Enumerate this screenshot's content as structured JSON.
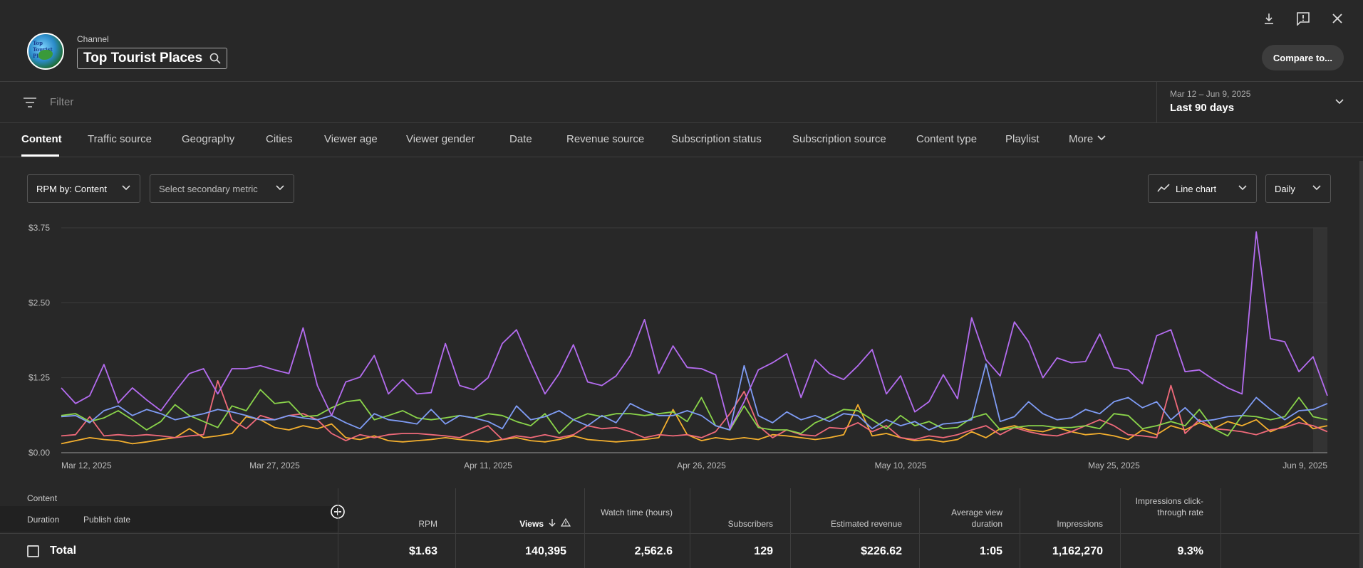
{
  "header": {
    "channel_label": "Channel",
    "channel_name": "Top Tourist Places",
    "avatar_text": "Top Tourist Places",
    "compare_label": "Compare to..."
  },
  "filter": {
    "placeholder": "Filter",
    "date_range": "Mar 12 – Jun 9, 2025",
    "date_value": "Last 90 days"
  },
  "tabs": [
    {
      "label": "Content",
      "active": true
    },
    {
      "label": "Traffic source"
    },
    {
      "label": "Geography"
    },
    {
      "label": "Cities"
    },
    {
      "label": "Viewer age"
    },
    {
      "label": "Viewer gender"
    },
    {
      "label": "Date"
    },
    {
      "label": "Revenue source"
    },
    {
      "label": "Subscription status"
    },
    {
      "label": "Subscription source"
    },
    {
      "label": "Content type"
    },
    {
      "label": "Playlist"
    },
    {
      "label": "More"
    }
  ],
  "controls": {
    "primary_metric": "RPM by: Content",
    "secondary_metric": "Select secondary metric",
    "chart_type": "Line chart",
    "interval": "Daily"
  },
  "chart_data": {
    "type": "line",
    "ylim": [
      0,
      3.75
    ],
    "y_ticks": [
      "$0.00",
      "$1.25",
      "$2.50",
      "$3.75"
    ],
    "x_ticks": [
      "Mar 12, 2025",
      "Mar 27, 2025",
      "Apr 11, 2025",
      "Apr 26, 2025",
      "May 10, 2025",
      "May 25, 2025",
      "Jun 9, 2025"
    ],
    "x_tick_days": [
      0,
      15,
      30,
      45,
      59,
      74,
      89
    ],
    "series": [
      {
        "color": "#b46cf0",
        "values": [
          1.08,
          0.82,
          0.95,
          1.47,
          0.83,
          1.08,
          0.88,
          0.7,
          1.02,
          1.32,
          1.4,
          0.98,
          1.4,
          1.4,
          1.45,
          1.38,
          1.32,
          2.08,
          1.12,
          0.62,
          1.18,
          1.26,
          1.62,
          0.98,
          1.22,
          0.98,
          1.0,
          1.82,
          1.12,
          1.05,
          1.25,
          1.82,
          2.05,
          1.5,
          0.98,
          1.32,
          1.8,
          1.18,
          1.12,
          1.28,
          1.62,
          2.22,
          1.32,
          1.78,
          1.42,
          1.4,
          1.3,
          0.4,
          0.85,
          1.38,
          1.5,
          1.65,
          0.92,
          1.55,
          1.32,
          1.22,
          1.45,
          1.72,
          0.98,
          1.28,
          0.68,
          0.85,
          1.3,
          0.9,
          2.25,
          1.55,
          1.28,
          2.18,
          1.85,
          1.25,
          1.58,
          1.5,
          1.52,
          1.98,
          1.42,
          1.38,
          1.15,
          1.95,
          2.05,
          1.35,
          1.38,
          1.22,
          1.08,
          0.98,
          3.68,
          1.9,
          1.85,
          1.35,
          1.6,
          0.95
        ]
      },
      {
        "color": "#7f9cf5",
        "values": [
          0.6,
          0.62,
          0.5,
          0.7,
          0.78,
          0.62,
          0.72,
          0.65,
          0.55,
          0.6,
          0.65,
          0.72,
          0.68,
          0.62,
          0.55,
          0.55,
          0.62,
          0.58,
          0.55,
          0.62,
          0.5,
          0.4,
          0.65,
          0.55,
          0.52,
          0.48,
          0.72,
          0.48,
          0.62,
          0.58,
          0.52,
          0.4,
          0.78,
          0.55,
          0.6,
          0.7,
          0.55,
          0.45,
          0.62,
          0.5,
          0.82,
          0.7,
          0.62,
          0.62,
          0.7,
          0.62,
          0.45,
          0.38,
          1.45,
          0.62,
          0.5,
          0.68,
          0.55,
          0.62,
          0.52,
          0.65,
          0.62,
          0.4,
          0.55,
          0.45,
          0.52,
          0.38,
          0.48,
          0.5,
          0.55,
          1.48,
          0.52,
          0.6,
          0.85,
          0.65,
          0.55,
          0.58,
          0.72,
          0.65,
          0.85,
          0.92,
          0.75,
          0.85,
          0.55,
          0.75,
          0.52,
          0.55,
          0.6,
          0.62,
          0.92,
          0.72,
          0.55,
          0.7,
          0.72,
          0.82
        ]
      },
      {
        "color": "#8ad44a",
        "values": [
          0.62,
          0.65,
          0.52,
          0.58,
          0.7,
          0.55,
          0.38,
          0.52,
          0.8,
          0.62,
          0.52,
          0.42,
          0.78,
          0.7,
          1.05,
          0.82,
          0.85,
          0.6,
          0.62,
          0.75,
          0.85,
          0.88,
          0.55,
          0.62,
          0.7,
          0.58,
          0.55,
          0.58,
          0.62,
          0.58,
          0.65,
          0.62,
          0.52,
          0.45,
          0.65,
          0.32,
          0.55,
          0.65,
          0.6,
          0.65,
          0.65,
          0.62,
          0.65,
          0.68,
          0.52,
          0.92,
          0.45,
          0.38,
          0.78,
          0.42,
          0.38,
          0.38,
          0.32,
          0.5,
          0.6,
          0.72,
          0.7,
          0.55,
          0.4,
          0.62,
          0.45,
          0.52,
          0.4,
          0.42,
          0.58,
          0.65,
          0.38,
          0.42,
          0.45,
          0.45,
          0.42,
          0.42,
          0.45,
          0.4,
          0.65,
          0.62,
          0.4,
          0.45,
          0.52,
          0.45,
          0.72,
          0.4,
          0.28,
          0.62,
          0.6,
          0.55,
          0.6,
          0.92,
          0.6,
          0.55
        ]
      },
      {
        "color": "#f06a7a",
        "values": [
          0.28,
          0.3,
          0.6,
          0.28,
          0.3,
          0.28,
          0.3,
          0.28,
          0.25,
          0.28,
          0.3,
          1.2,
          0.55,
          0.4,
          0.62,
          0.55,
          0.62,
          0.65,
          0.55,
          0.32,
          0.2,
          0.3,
          0.25,
          0.3,
          0.32,
          0.32,
          0.3,
          0.28,
          0.25,
          0.35,
          0.45,
          0.22,
          0.28,
          0.25,
          0.3,
          0.25,
          0.3,
          0.45,
          0.4,
          0.42,
          0.35,
          0.25,
          0.3,
          0.28,
          0.3,
          0.25,
          0.35,
          0.65,
          1.02,
          0.45,
          0.25,
          0.38,
          0.3,
          0.28,
          0.42,
          0.4,
          0.5,
          0.35,
          0.45,
          0.25,
          0.22,
          0.28,
          0.25,
          0.3,
          0.38,
          0.45,
          0.3,
          0.42,
          0.35,
          0.3,
          0.28,
          0.35,
          0.45,
          0.55,
          0.45,
          0.3,
          0.28,
          0.25,
          1.12,
          0.32,
          0.55,
          0.4,
          0.38,
          0.35,
          0.3,
          0.38,
          0.42,
          0.5,
          0.45,
          0.35
        ]
      },
      {
        "color": "#f5b02e",
        "values": [
          0.15,
          0.2,
          0.25,
          0.22,
          0.2,
          0.15,
          0.18,
          0.22,
          0.25,
          0.4,
          0.25,
          0.28,
          0.32,
          0.6,
          0.55,
          0.42,
          0.38,
          0.45,
          0.4,
          0.48,
          0.25,
          0.22,
          0.28,
          0.2,
          0.18,
          0.2,
          0.22,
          0.25,
          0.22,
          0.2,
          0.18,
          0.22,
          0.25,
          0.2,
          0.18,
          0.22,
          0.28,
          0.22,
          0.2,
          0.18,
          0.2,
          0.22,
          0.25,
          0.72,
          0.3,
          0.2,
          0.25,
          0.22,
          0.25,
          0.22,
          0.3,
          0.28,
          0.25,
          0.22,
          0.25,
          0.3,
          0.8,
          0.28,
          0.32,
          0.25,
          0.2,
          0.22,
          0.18,
          0.22,
          0.35,
          0.25,
          0.4,
          0.45,
          0.38,
          0.35,
          0.42,
          0.35,
          0.3,
          0.32,
          0.28,
          0.22,
          0.38,
          0.3,
          0.45,
          0.38,
          0.5,
          0.4,
          0.52,
          0.45,
          0.55,
          0.35,
          0.45,
          0.6,
          0.4,
          0.45
        ]
      }
    ]
  },
  "table": {
    "header_content": "Content",
    "header_duration": "Duration",
    "header_publish": "Publish date",
    "columns": [
      "RPM",
      "Views",
      "Watch time (hours)",
      "Subscribers",
      "Estimated revenue",
      "Average view duration",
      "Impressions",
      "Impressions click-through rate"
    ],
    "total_label": "Total",
    "total": [
      "$1.63",
      "140,395",
      "2,562.6",
      "129",
      "$226.62",
      "1:05",
      "1,162,270",
      "9.3%"
    ]
  }
}
